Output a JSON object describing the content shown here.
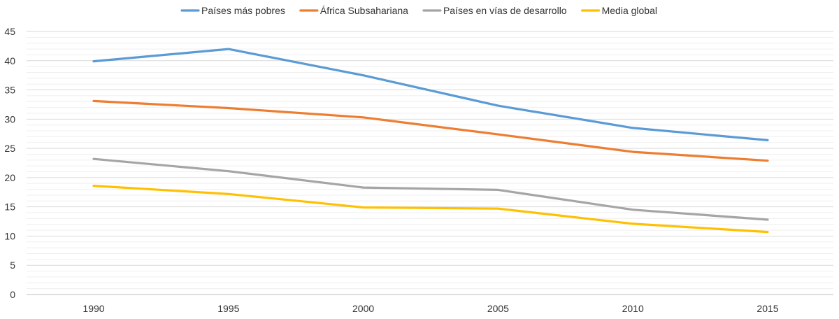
{
  "chart_data": {
    "type": "line",
    "title": "",
    "xlabel": "",
    "ylabel": "",
    "categories": [
      "1990",
      "1995",
      "2000",
      "2005",
      "2010",
      "2015"
    ],
    "ylim": [
      0,
      45
    ],
    "yticks": [
      0,
      5,
      10,
      15,
      20,
      25,
      30,
      35,
      40,
      45
    ],
    "grid": true,
    "legend_position": "top-center",
    "series": [
      {
        "name": "Países más pobres",
        "color": "#5b9bd5",
        "values": [
          39.9,
          42.0,
          37.5,
          32.3,
          28.5,
          26.4
        ]
      },
      {
        "name": "África Subsahariana",
        "color": "#ed7d31",
        "values": [
          33.1,
          31.9,
          30.3,
          27.4,
          24.4,
          22.9
        ]
      },
      {
        "name": "Países en vías de desarrollo",
        "color": "#a5a5a5",
        "values": [
          23.2,
          21.1,
          18.3,
          17.9,
          14.5,
          12.8
        ]
      },
      {
        "name": "Media global",
        "color": "#ffc000",
        "values": [
          18.6,
          17.2,
          14.9,
          14.7,
          12.1,
          10.7
        ]
      }
    ]
  }
}
